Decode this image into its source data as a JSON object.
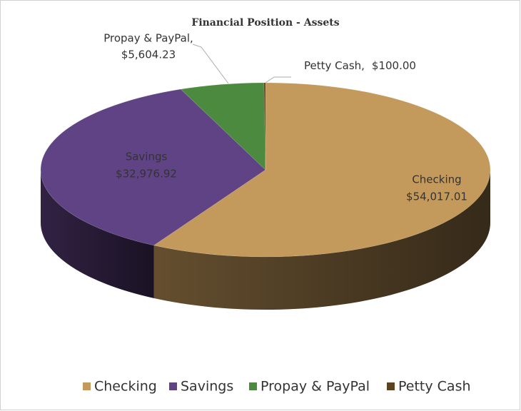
{
  "chart_data": {
    "type": "pie",
    "title": "Financial Position - Assets",
    "categories": [
      "Checking",
      "Savings",
      "Propay & PayPal",
      "Petty Cash"
    ],
    "values": [
      54017.01,
      32976.92,
      5604.23,
      100.0
    ],
    "value_labels": [
      "$54,017.01",
      "$32,976.92",
      "$5,604.23",
      "$100.00"
    ],
    "label_names": [
      "Checking",
      "Savings",
      "Propay & PayPal,",
      "Petty Cash,"
    ],
    "colors": [
      "#c49a5c",
      "#604384",
      "#4b8a3f",
      "#5c4322"
    ],
    "legend": "bottom",
    "three_d": true
  }
}
